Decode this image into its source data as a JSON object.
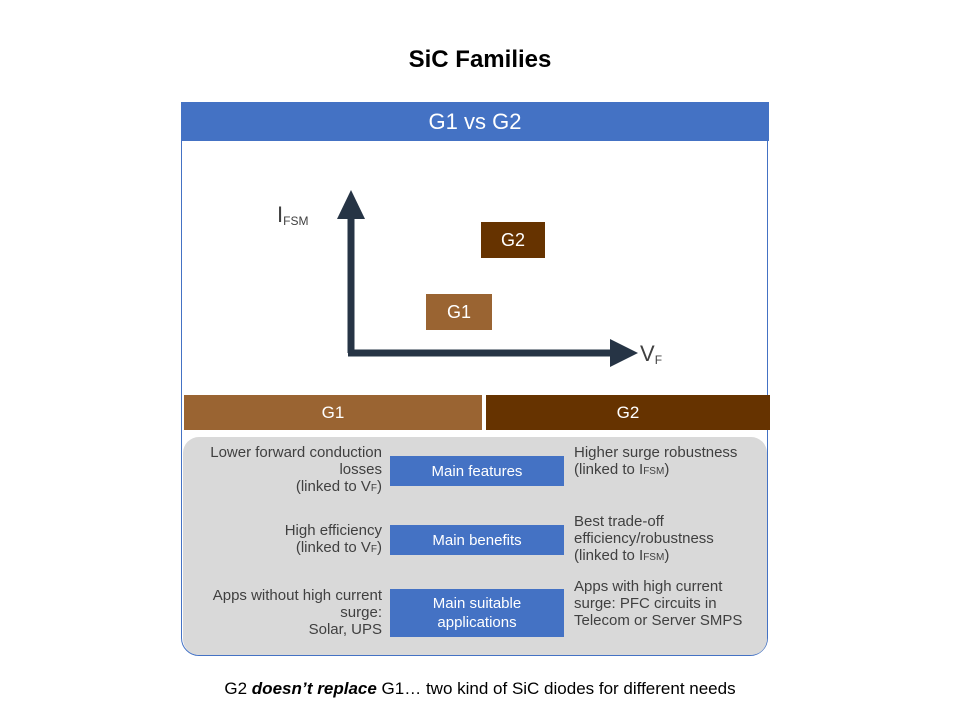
{
  "slide_title": "SiC Families",
  "header": "G1 vs G2",
  "diagram": {
    "y_axis_label": "I",
    "y_axis_sub": "FSM",
    "x_axis_label": "V",
    "x_axis_sub": "F",
    "g1_label": "G1",
    "g2_label": "G2"
  },
  "columns": {
    "g1": "G1",
    "g2": "G2"
  },
  "rows": [
    {
      "center": "Main features",
      "left_lines": [
        "Lower forward conduction",
        "losses",
        "(linked to V"
      ],
      "left_sub": "F",
      "left_close": ")",
      "right_lines": [
        "Higher surge robustness",
        "(linked to I"
      ],
      "right_sub": "FSM",
      "right_close": ")"
    },
    {
      "center": "Main benefits",
      "left_lines": [
        "High efficiency",
        "(linked to V"
      ],
      "left_sub": "F",
      "left_close": ")",
      "right_lines": [
        "Best trade-off",
        "efficiency/robustness",
        "(linked to I"
      ],
      "right_sub": "FSM",
      "right_close": ")"
    },
    {
      "center_lines": [
        "Main suitable",
        "applications"
      ],
      "left_lines": [
        "Apps without high current",
        "surge:",
        "Solar, UPS"
      ],
      "right_lines": [
        "Apps with high current",
        "surge: PFC circuits in",
        "Telecom or Server SMPS"
      ]
    }
  ],
  "footer": {
    "pre": "G2 ",
    "emph": "doesn’t replace",
    "post": " G1… two kind of SiC diodes for different needs"
  },
  "colors": {
    "header_blue": "#4472C4",
    "g1_brown": "#9A6432",
    "g2_brown": "#663300",
    "axis": "#263445",
    "panel_gray": "#D9D9D9"
  }
}
